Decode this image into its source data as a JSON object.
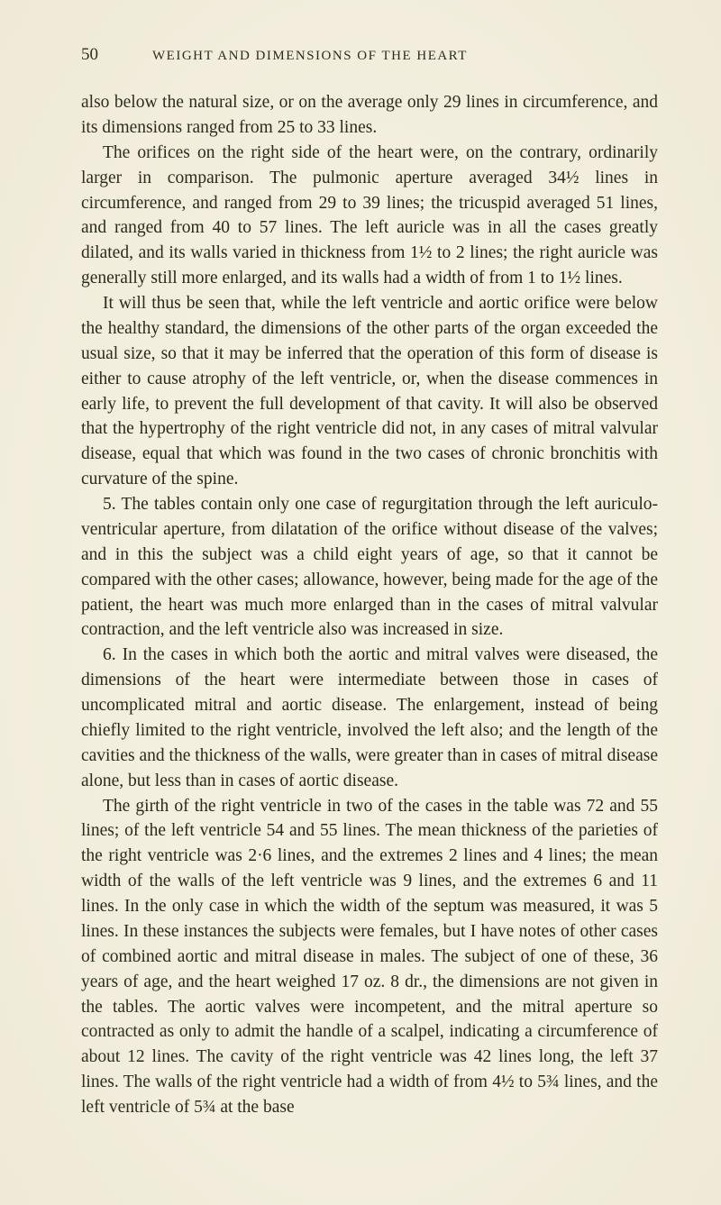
{
  "page": {
    "number": "50",
    "running_title": "WEIGHT AND DIMENSIONS OF THE HEART",
    "background_color": "#f4f0e0",
    "text_color": "#2a2618",
    "body_fontsize": 19.5,
    "title_fontsize": 15,
    "pagenum_fontsize": 19,
    "line_height": 1.43,
    "paragraphs": [
      "also below the natural size, or on the average only 29 lines in circumference, and its dimensions ranged from 25 to 33 lines.",
      "The orifices on the right side of the heart were, on the contrary, ordinarily larger in comparison. The pulmonic aperture averaged 34½ lines in circumference, and ranged from 29 to 39 lines; the tricuspid averaged 51 lines, and ranged from 40 to 57 lines. The left auricle was in all the cases greatly dilated, and its walls varied in thickness from 1½ to 2 lines; the right auricle was generally still more enlarged, and its walls had a width of from 1 to 1½ lines.",
      "It will thus be seen that, while the left ventricle and aortic orifice were below the healthy standard, the dimensions of the other parts of the organ exceeded the usual size, so that it may be inferred that the operation of this form of disease is either to cause atrophy of the left ventricle, or, when the disease commences in early life, to prevent the full development of that cavity. It will also be observed that the hypertrophy of the right ventricle did not, in any cases of mitral valvular disease, equal that which was found in the two cases of chronic bronchitis with curvature of the spine.",
      "5. The tables contain only one case of regurgitation through the left auriculo-ventricular aperture, from dilatation of the orifice without disease of the valves; and in this the subject was a child eight years of age, so that it cannot be compared with the other cases; allowance, however, being made for the age of the patient, the heart was much more enlarged than in the cases of mitral valvular contraction, and the left ventricle also was increased in size.",
      "6. In the cases in which both the aortic and mitral valves were diseased, the dimensions of the heart were intermediate between those in cases of uncomplicated mitral and aortic disease. The enlargement, instead of being chiefly limited to the right ventricle, involved the left also; and the length of the cavities and the thickness of the walls, were greater than in cases of mitral disease alone, but less than in cases of aortic disease.",
      "The girth of the right ventricle in two of the cases in the table was 72 and 55 lines; of the left ventricle 54 and 55 lines. The mean thickness of the parieties of the right ventricle was 2·6 lines, and the extremes 2 lines and 4 lines; the mean width of the walls of the left ventricle was 9 lines, and the extremes 6 and 11 lines. In the only case in which the width of the septum was measured, it was 5 lines. In these instances the subjects were females, but I have notes of other cases of combined aortic and mitral disease in males. The subject of one of these, 36 years of age, and the heart weighed 17 oz. 8 dr., the dimensions are not given in the tables. The aortic valves were incompetent, and the mitral aperture so contracted as only to admit the handle of a scalpel, indicating a circumference of about 12 lines. The cavity of the right ventricle was 42 lines long, the left 37 lines. The walls of the right ventricle had a width of from 4½ to 5¾ lines, and the left ventricle of 5¾ at the base"
    ]
  }
}
